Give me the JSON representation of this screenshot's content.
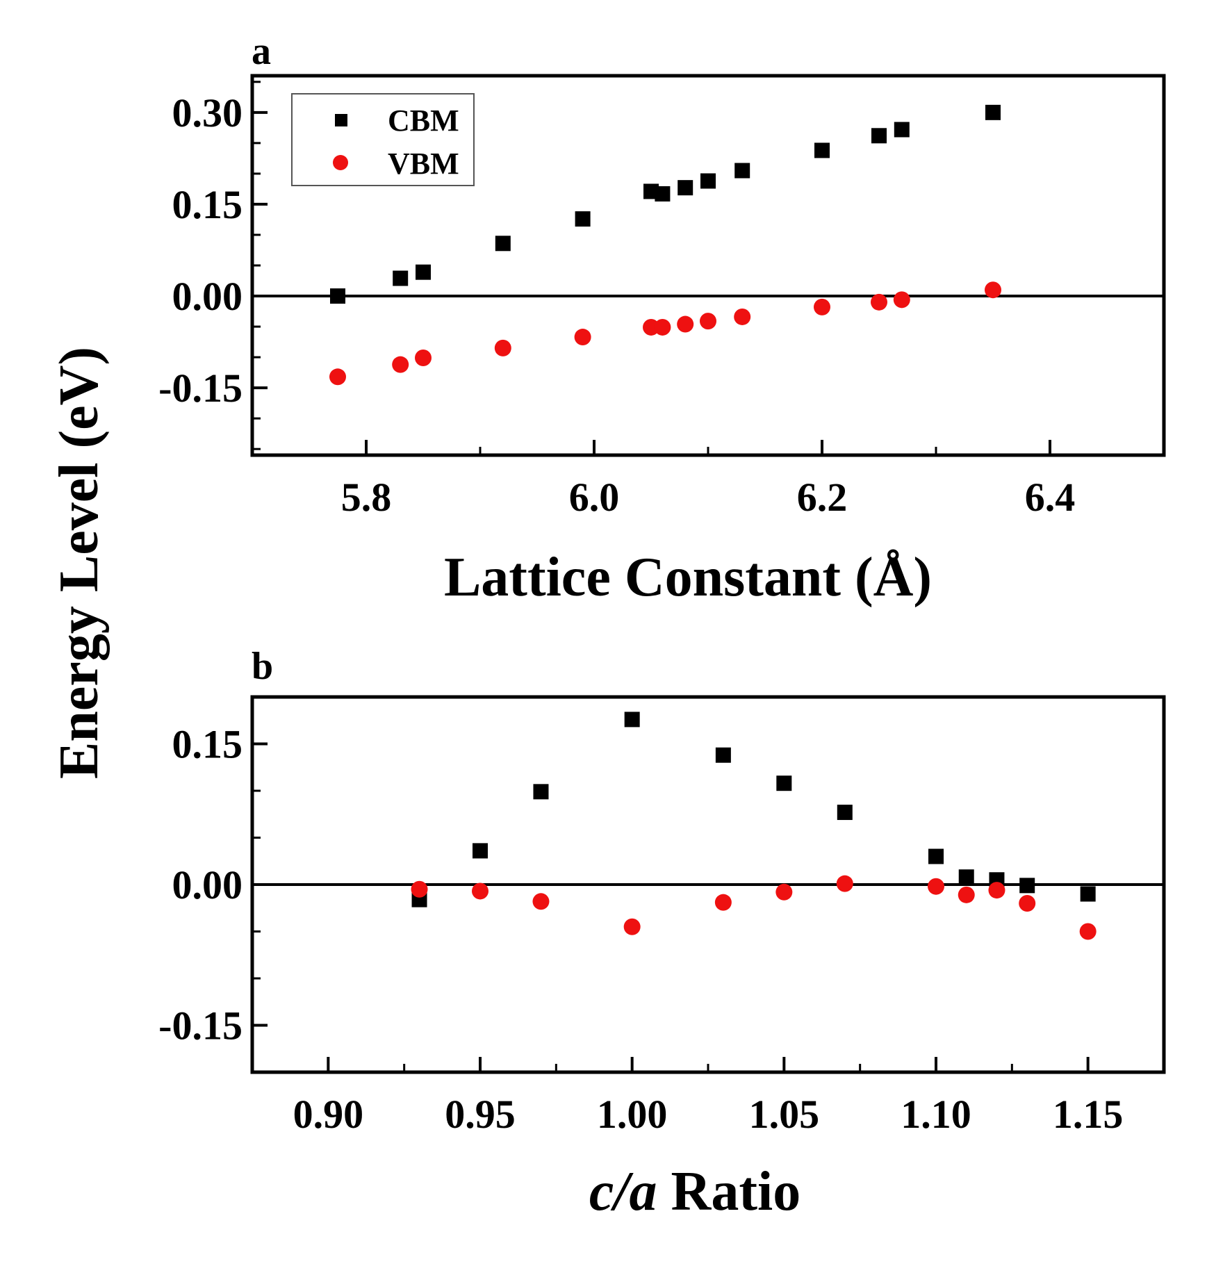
{
  "chart_data": [
    {
      "type": "scatter",
      "panel": "a",
      "xlabel": "Lattice Constant (Å)",
      "ylabel": "Energy Level (eV)",
      "xlim": [
        5.7,
        6.5
      ],
      "ylim": [
        -0.26,
        0.36
      ],
      "xticks": [
        "5.8",
        "6.0",
        "6.2",
        "6.4"
      ],
      "yticks": [
        "-0.15",
        "0.00",
        "0.15",
        "0.30"
      ],
      "legend": {
        "position": "top-left",
        "entries": [
          "CBM",
          "VBM"
        ]
      },
      "series": [
        {
          "name": "CBM",
          "marker": "square",
          "color": "#000000",
          "x": [
            5.775,
            5.83,
            5.85,
            5.92,
            5.99,
            6.05,
            6.06,
            6.08,
            6.1,
            6.13,
            6.2,
            6.25,
            6.27,
            6.35
          ],
          "y": [
            0.0,
            0.029,
            0.039,
            0.086,
            0.126,
            0.171,
            0.167,
            0.177,
            0.188,
            0.205,
            0.238,
            0.262,
            0.272,
            0.3
          ]
        },
        {
          "name": "VBM",
          "marker": "circle",
          "color": "#ee1111",
          "x": [
            5.775,
            5.83,
            5.85,
            5.92,
            5.99,
            6.05,
            6.06,
            6.08,
            6.1,
            6.13,
            6.2,
            6.25,
            6.27,
            6.35
          ],
          "y": [
            -0.132,
            -0.112,
            -0.101,
            -0.085,
            -0.067,
            -0.051,
            -0.051,
            -0.046,
            -0.041,
            -0.034,
            -0.018,
            -0.01,
            -0.006,
            0.01
          ]
        }
      ]
    },
    {
      "type": "scatter",
      "panel": "b",
      "xlabel_italic": "c/a",
      "xlabel_rest": " Ratio",
      "ylabel": "Energy Level (eV)",
      "xlim": [
        0.875,
        1.175
      ],
      "ylim": [
        -0.2,
        0.2
      ],
      "xticks": [
        "0.90",
        "0.95",
        "1.00",
        "1.05",
        "1.10",
        "1.15"
      ],
      "yticks": [
        "-0.15",
        "0.00",
        "0.15"
      ],
      "series": [
        {
          "name": "CBM",
          "marker": "square",
          "color": "#000000",
          "x": [
            0.93,
            0.95,
            0.97,
            1.0,
            1.03,
            1.05,
            1.07,
            1.1,
            1.11,
            1.12,
            1.13,
            1.15
          ],
          "y": [
            -0.016,
            0.036,
            0.099,
            0.176,
            0.138,
            0.108,
            0.077,
            0.03,
            0.008,
            0.005,
            -0.001,
            -0.01
          ]
        },
        {
          "name": "VBM",
          "marker": "circle",
          "color": "#ee1111",
          "x": [
            0.93,
            0.95,
            0.97,
            1.0,
            1.03,
            1.05,
            1.07,
            1.1,
            1.11,
            1.12,
            1.13,
            1.15
          ],
          "y": [
            -0.005,
            -0.007,
            -0.018,
            -0.045,
            -0.019,
            -0.008,
            0.001,
            -0.002,
            -0.011,
            -0.006,
            -0.02,
            -0.05
          ]
        }
      ]
    }
  ]
}
